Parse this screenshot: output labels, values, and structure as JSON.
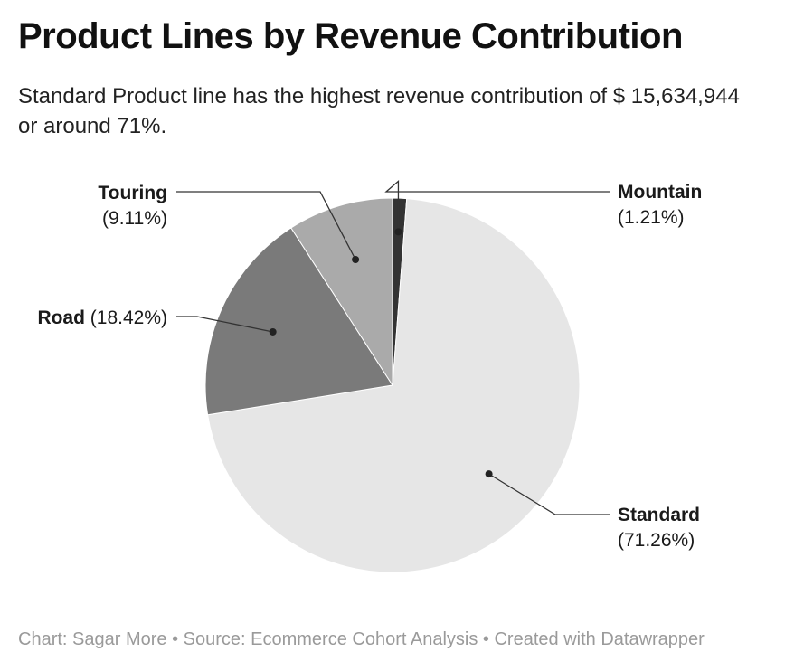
{
  "title": "Product Lines by Revenue Contribution",
  "subtitle": "Standard Product line has the highest revenue contribution of $ 15,634,944 or around 71%.",
  "footer": {
    "byline": "Chart: Sagar More",
    "source": "Source: Ecommerce Cohort Analysis",
    "credit": "Created with Datawrapper",
    "separator": "•"
  },
  "chart_data": {
    "type": "pie",
    "start_category": "Mountain",
    "slices": [
      {
        "name": "Mountain",
        "value": 1.21,
        "label": "(1.21%)",
        "color": "#333333"
      },
      {
        "name": "Standard",
        "value": 71.26,
        "label": "(71.26%)",
        "color": "#e6e6e6"
      },
      {
        "name": "Road",
        "value": 18.42,
        "label": "(18.42%)",
        "color": "#7a7a7a"
      },
      {
        "name": "Touring",
        "value": 9.11,
        "label": "(9.11%)",
        "color": "#aaaaaa"
      }
    ]
  }
}
